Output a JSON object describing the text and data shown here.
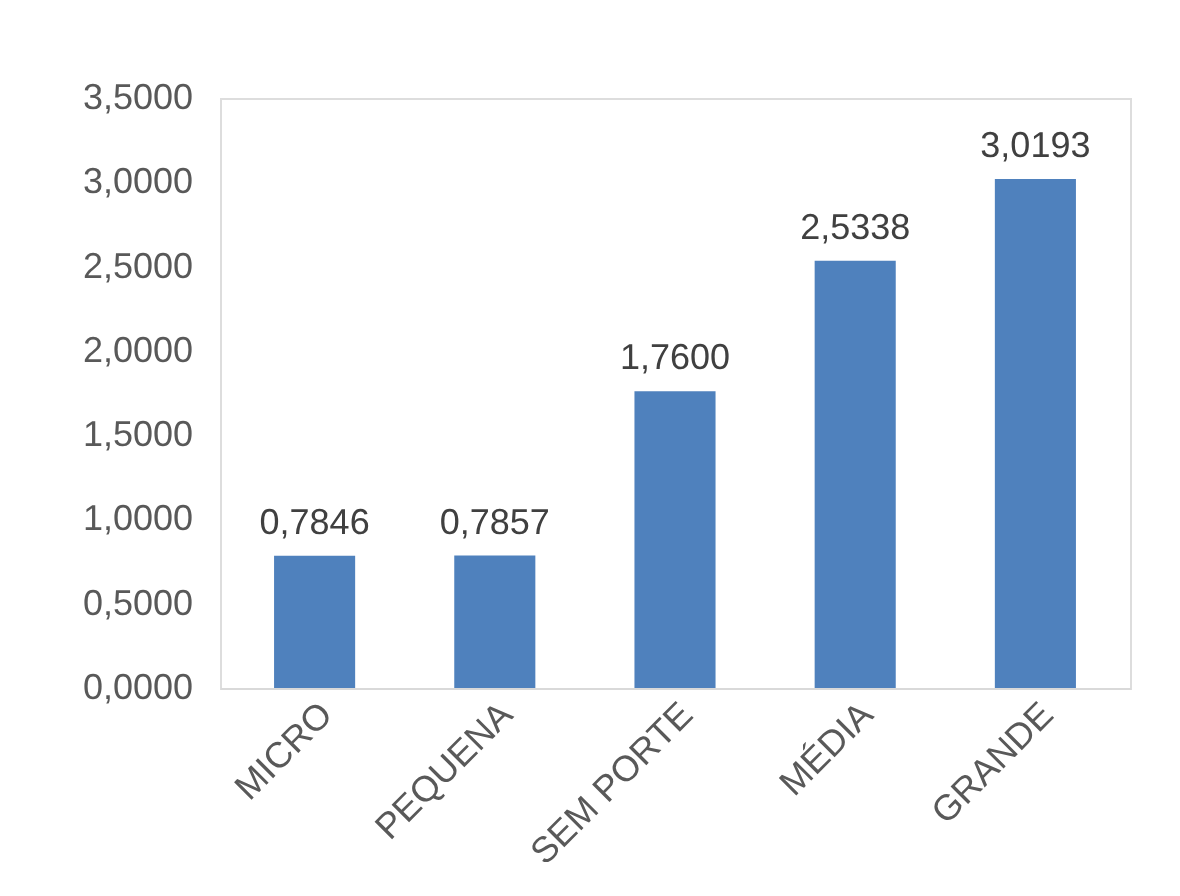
{
  "chart_data": {
    "type": "bar",
    "categories": [
      "MICRO",
      "PEQUENA",
      "SEM PORTE",
      "MÉDIA",
      "GRANDE"
    ],
    "values": [
      0.7846,
      0.7857,
      1.76,
      2.5338,
      3.0193
    ],
    "value_labels": [
      "0,7846",
      "0,7857",
      "1,7600",
      "2,5338",
      "3,0193"
    ],
    "color": "#4f81bd",
    "ylim": [
      0,
      3.5
    ],
    "yticks": [
      {
        "value": 0,
        "label": "0,0000"
      },
      {
        "value": 0.5,
        "label": "0,5000"
      },
      {
        "value": 1,
        "label": "1,0000"
      },
      {
        "value": 1.5,
        "label": "1,5000"
      },
      {
        "value": 2,
        "label": "2,0000"
      },
      {
        "value": 2.5,
        "label": "2,5000"
      },
      {
        "value": 3,
        "label": "3,0000"
      },
      {
        "value": 3.5,
        "label": "3,5000"
      }
    ],
    "grid": false
  }
}
